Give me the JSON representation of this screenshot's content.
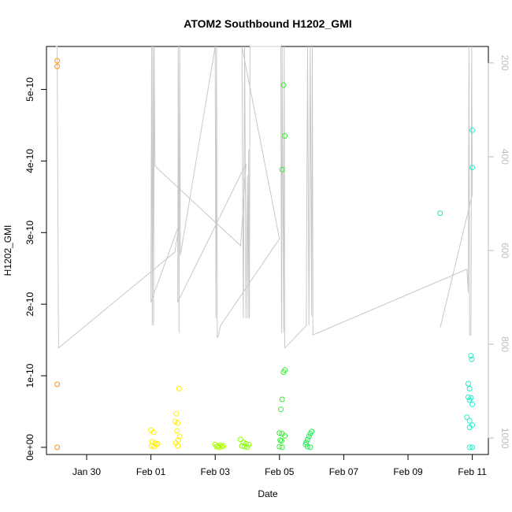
{
  "chart_data": {
    "type": "scatter",
    "title": "ATOM2 Southbound H1202_GMI",
    "xlabel": "Date",
    "ylabel": "H1202_GMI",
    "x_ticks": [
      "Jan 30",
      "Feb 01",
      "Feb 03",
      "Feb 05",
      "Feb 07",
      "Feb 09",
      "Feb 11"
    ],
    "y_ticks": [
      "0e+00",
      "1e-10",
      "2e-10",
      "3e-10",
      "4e-10",
      "5e-10"
    ],
    "y_tick_values": [
      0,
      1e-10,
      2e-10,
      3e-10,
      4e-10,
      5e-10
    ],
    "y2_ticks": [
      "200",
      "400",
      "600",
      "800",
      "1000"
    ],
    "y2_tick_values": [
      200,
      400,
      600,
      800,
      1000
    ],
    "xlim": [
      "2017-01-28T18:00",
      "2017-02-11T12:00"
    ],
    "ylim": [
      -1e-11,
      5.6e-10
    ],
    "y2lim": [
      1035,
      165
    ],
    "x_tick_values": [
      "2017-01-30",
      "2017-02-01",
      "2017-02-03",
      "2017-02-05",
      "2017-02-07",
      "2017-02-09",
      "2017-02-11"
    ],
    "pressure_line_color": "#c8c8c8",
    "points": [
      {
        "x": "2017-01-29T02:00",
        "y": 5.4e-10,
        "color": "#ff8c1a"
      },
      {
        "x": "2017-01-29T02:00",
        "y": 5.32e-10,
        "color": "#ff8c1a"
      },
      {
        "x": "2017-01-29T02:00",
        "y": 8.8e-11,
        "color": "#ff8c1a"
      },
      {
        "x": "2017-01-29T02:00",
        "y": 0,
        "color": "#ff8c1a"
      },
      {
        "x": "2017-02-01T00:00",
        "y": 2.4e-11,
        "color": "#ffee00"
      },
      {
        "x": "2017-02-01T02:00",
        "y": 2.1e-11,
        "color": "#ffee00"
      },
      {
        "x": "2017-02-01T01:00",
        "y": 8e-12,
        "color": "#ffee00"
      },
      {
        "x": "2017-02-01T03:00",
        "y": 6e-12,
        "color": "#ffee00"
      },
      {
        "x": "2017-02-01T04:00",
        "y": 4e-12,
        "color": "#ffee00"
      },
      {
        "x": "2017-02-01T00:30",
        "y": 2e-12,
        "color": "#ffee00"
      },
      {
        "x": "2017-02-01T02:30",
        "y": 1e-12,
        "color": "#ffee00"
      },
      {
        "x": "2017-02-01T05:00",
        "y": 5e-12,
        "color": "#ffee00"
      },
      {
        "x": "2017-02-01T21:00",
        "y": 8.2e-11,
        "color": "#ffee00"
      },
      {
        "x": "2017-02-01T19:00",
        "y": 4.7e-11,
        "color": "#ffee00"
      },
      {
        "x": "2017-02-01T18:00",
        "y": 3.6e-11,
        "color": "#ffee00"
      },
      {
        "x": "2017-02-01T20:00",
        "y": 3.4e-11,
        "color": "#ffee00"
      },
      {
        "x": "2017-02-01T19:30",
        "y": 2.3e-11,
        "color": "#ffee00"
      },
      {
        "x": "2017-02-01T21:30",
        "y": 1.5e-11,
        "color": "#ffee00"
      },
      {
        "x": "2017-02-01T20:30",
        "y": 1e-11,
        "color": "#ffee00"
      },
      {
        "x": "2017-02-01T18:30",
        "y": 6e-12,
        "color": "#ffee00"
      },
      {
        "x": "2017-02-01T20:00",
        "y": 2e-12,
        "color": "#ffee00"
      },
      {
        "x": "2017-02-03T00:00",
        "y": 4e-12,
        "color": "#aaff00"
      },
      {
        "x": "2017-02-03T02:00",
        "y": 2e-12,
        "color": "#aaff00"
      },
      {
        "x": "2017-02-03T04:00",
        "y": 3e-12,
        "color": "#aaff00"
      },
      {
        "x": "2017-02-03T06:00",
        "y": 2e-12,
        "color": "#aaff00"
      },
      {
        "x": "2017-02-03T01:00",
        "y": 1e-12,
        "color": "#aaff00"
      },
      {
        "x": "2017-02-03T05:00",
        "y": 1e-12,
        "color": "#aaff00"
      },
      {
        "x": "2017-02-03T03:00",
        "y": 0,
        "color": "#aaff00"
      },
      {
        "x": "2017-02-03T19:00",
        "y": 1.1e-11,
        "color": "#88ff00"
      },
      {
        "x": "2017-02-03T21:00",
        "y": 7e-12,
        "color": "#88ff00"
      },
      {
        "x": "2017-02-03T23:00",
        "y": 5e-12,
        "color": "#88ff00"
      },
      {
        "x": "2017-02-04T01:00",
        "y": 4e-12,
        "color": "#88ff00"
      },
      {
        "x": "2017-02-03T20:00",
        "y": 2e-12,
        "color": "#88ff00"
      },
      {
        "x": "2017-02-03T22:00",
        "y": 1e-12,
        "color": "#88ff00"
      },
      {
        "x": "2017-02-04T00:00",
        "y": 0,
        "color": "#88ff00"
      },
      {
        "x": "2017-02-05T03:00",
        "y": 5.06e-10,
        "color": "#33ee33"
      },
      {
        "x": "2017-02-05T04:00",
        "y": 4.35e-10,
        "color": "#33ee33"
      },
      {
        "x": "2017-02-05T02:00",
        "y": 3.88e-10,
        "color": "#33ee33"
      },
      {
        "x": "2017-02-05T04:00",
        "y": 1.08e-10,
        "color": "#33ee33"
      },
      {
        "x": "2017-02-05T03:00",
        "y": 1.05e-10,
        "color": "#33ee33"
      },
      {
        "x": "2017-02-05T02:00",
        "y": 6.7e-11,
        "color": "#33ee33"
      },
      {
        "x": "2017-02-05T01:00",
        "y": 5.3e-11,
        "color": "#33ee33"
      },
      {
        "x": "2017-02-05T00:00",
        "y": 2e-11,
        "color": "#33ee33"
      },
      {
        "x": "2017-02-05T02:00",
        "y": 1.9e-11,
        "color": "#33ee33"
      },
      {
        "x": "2017-02-05T04:00",
        "y": 1.6e-11,
        "color": "#33ee33"
      },
      {
        "x": "2017-02-05T00:30",
        "y": 1e-11,
        "color": "#33ee33"
      },
      {
        "x": "2017-02-05T01:30",
        "y": 9e-12,
        "color": "#33ee33"
      },
      {
        "x": "2017-02-05T00:00",
        "y": 1e-12,
        "color": "#33ee33"
      },
      {
        "x": "2017-02-05T02:00",
        "y": 0,
        "color": "#33ee33"
      },
      {
        "x": "2017-02-06T00:00",
        "y": 2.2e-11,
        "color": "#22ee55"
      },
      {
        "x": "2017-02-05T23:00",
        "y": 1.9e-11,
        "color": "#22ee55"
      },
      {
        "x": "2017-02-05T22:00",
        "y": 1.5e-11,
        "color": "#22ee55"
      },
      {
        "x": "2017-02-05T21:00",
        "y": 1.1e-11,
        "color": "#22ee55"
      },
      {
        "x": "2017-02-05T20:00",
        "y": 7e-12,
        "color": "#22ee55"
      },
      {
        "x": "2017-02-05T19:30",
        "y": 4e-12,
        "color": "#22ee55"
      },
      {
        "x": "2017-02-05T21:00",
        "y": 1e-12,
        "color": "#22ee55"
      },
      {
        "x": "2017-02-05T23:00",
        "y": 0,
        "color": "#22ee55"
      },
      {
        "x": "2017-02-10T00:00",
        "y": 3.27e-10,
        "color": "#22ddaa"
      },
      {
        "x": "2017-02-11T00:00",
        "y": 4.43e-10,
        "color": "#22eecc"
      },
      {
        "x": "2017-02-11T00:00",
        "y": 3.91e-10,
        "color": "#22eecc"
      },
      {
        "x": "2017-02-10T23:00",
        "y": 1.28e-10,
        "color": "#22eecc"
      },
      {
        "x": "2017-02-10T23:30",
        "y": 1.23e-10,
        "color": "#22eecc"
      },
      {
        "x": "2017-02-10T21:00",
        "y": 8.9e-11,
        "color": "#22eecc"
      },
      {
        "x": "2017-02-10T22:00",
        "y": 8.2e-11,
        "color": "#22eecc"
      },
      {
        "x": "2017-02-10T21:00",
        "y": 7e-11,
        "color": "#22eecc"
      },
      {
        "x": "2017-02-10T23:00",
        "y": 6.9e-11,
        "color": "#22eecc"
      },
      {
        "x": "2017-02-10T22:00",
        "y": 6.6e-11,
        "color": "#22eecc"
      },
      {
        "x": "2017-02-11T00:00",
        "y": 6e-11,
        "color": "#22eecc"
      },
      {
        "x": "2017-02-10T20:00",
        "y": 4.2e-11,
        "color": "#22eecc"
      },
      {
        "x": "2017-02-10T22:00",
        "y": 3.7e-11,
        "color": "#22eecc"
      },
      {
        "x": "2017-02-11T00:00",
        "y": 3.1e-11,
        "color": "#22eecc"
      },
      {
        "x": "2017-02-10T22:00",
        "y": 2.8e-11,
        "color": "#22eecc"
      },
      {
        "x": "2017-02-10T22:00",
        "y": 0,
        "color": "#22eecc"
      },
      {
        "x": "2017-02-11T00:00",
        "y": 0,
        "color": "#22eecc"
      }
    ],
    "pressure_track": [
      [
        "2017-01-29T01:00",
        160
      ],
      [
        "2017-01-29T02:00",
        160
      ],
      [
        "2017-01-29T03:00",
        808
      ],
      [
        "2017-02-01T18:00",
        603
      ],
      [
        "2017-02-01T21:00",
        545
      ],
      [
        "2017-02-01T00:00",
        710
      ],
      [
        "2017-02-01T00:30",
        160
      ],
      [
        "2017-02-01T01:00",
        760
      ],
      [
        "2017-02-01T01:30",
        160
      ],
      [
        "2017-02-01T02:00",
        760
      ],
      [
        "2017-02-01T02:30",
        160
      ],
      [
        "2017-02-01T03:00",
        420
      ],
      [
        "2017-02-03T19:00",
        590
      ],
      [
        "2017-02-03T23:00",
        415
      ],
      [
        "2017-02-01T20:00",
        710
      ],
      [
        "2017-02-01T20:30",
        160
      ],
      [
        "2017-02-01T21:00",
        775
      ],
      [
        "2017-02-01T21:30",
        160
      ],
      [
        "2017-02-01T22:00",
        610
      ],
      [
        "2017-02-03T00:00",
        160
      ],
      [
        "2017-02-03T00:30",
        745
      ],
      [
        "2017-02-03T01:00",
        160
      ],
      [
        "2017-02-03T01:30",
        785
      ],
      [
        "2017-02-03T02:00",
        785
      ],
      [
        "2017-02-03T04:00",
        760
      ],
      [
        "2017-02-05T00:00",
        575
      ],
      [
        "2017-02-03T20:00",
        160
      ],
      [
        "2017-02-03T21:00",
        745
      ],
      [
        "2017-02-03T22:00",
        160
      ],
      [
        "2017-02-03T23:00",
        745
      ],
      [
        "2017-02-04T00:00",
        440
      ],
      [
        "2017-02-04T00:30",
        745
      ],
      [
        "2017-02-04T01:00",
        385
      ],
      [
        "2017-02-04T01:30",
        745
      ],
      [
        "2017-02-04T02:00",
        160
      ],
      [
        "2017-02-05T01:00",
        160
      ],
      [
        "2017-02-05T01:30",
        775
      ],
      [
        "2017-02-05T02:00",
        160
      ],
      [
        "2017-02-05T03:00",
        775
      ],
      [
        "2017-02-05T03:30",
        160
      ],
      [
        "2017-02-05T04:00",
        808
      ],
      [
        "2017-02-05T20:00",
        760
      ],
      [
        "2017-02-05T21:00",
        160
      ],
      [
        "2017-02-05T22:00",
        760
      ],
      [
        "2017-02-05T23:00",
        160
      ],
      [
        "2017-02-06T00:00",
        740
      ],
      [
        "2017-02-06T00:30",
        160
      ],
      [
        "2017-02-06T01:00",
        780
      ],
      [
        "2017-02-10T20:00",
        640
      ],
      [
        "2017-02-10T21:00",
        690
      ],
      [
        "2017-02-10T21:30",
        160
      ],
      [
        "2017-02-10T22:00",
        780
      ],
      [
        "2017-02-10T23:00",
        780
      ],
      [
        "2017-02-10T23:30",
        160
      ],
      [
        "2017-02-11T00:00",
        480
      ],
      [
        "2017-02-10T00:00",
        765
      ]
    ]
  }
}
